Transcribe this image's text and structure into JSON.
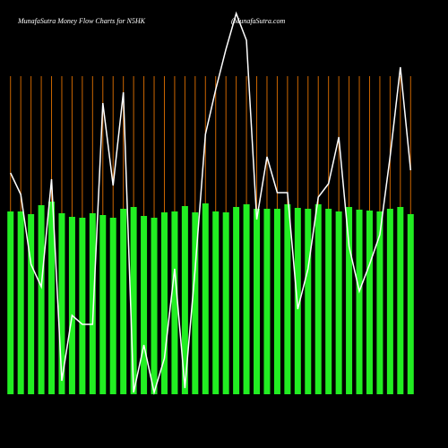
{
  "chart_data": {
    "type": "bar",
    "title": "MunafaSutra  Money Flow  Charts for N5HK",
    "subtitle": "(MunafaSutra.com",
    "series": [
      {
        "name": null,
        "type": "bar",
        "color": "#22ee22",
        "values": [
          204,
          204,
          201,
          211,
          215,
          202,
          198,
          197,
          202,
          200,
          197,
          207,
          209,
          199,
          197,
          203,
          204,
          210,
          203,
          213,
          204,
          203,
          209,
          212,
          207,
          207,
          207,
          212,
          208,
          207,
          212,
          207,
          204,
          209,
          206,
          205,
          204,
          207,
          209,
          201
        ]
      },
      {
        "name": null,
        "type": "line",
        "color": "#ffffff",
        "values": [
          247,
          223,
          145,
          120,
          240,
          15,
          88,
          78,
          78,
          325,
          233,
          337,
          2,
          55,
          2,
          40,
          140,
          7,
          140,
          290,
          340,
          385,
          425,
          395,
          195,
          265,
          225,
          225,
          95,
          140,
          220,
          235,
          287,
          165,
          115,
          145,
          178,
          265,
          365,
          250
        ]
      }
    ],
    "ylim": [
      0,
      440
    ],
    "guide_color": "#cc6600"
  }
}
